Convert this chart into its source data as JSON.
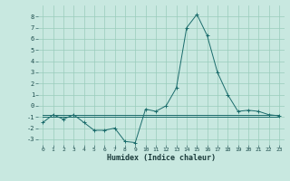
{
  "xlabel": "Humidex (Indice chaleur)",
  "background_color": "#c8e8e0",
  "grid_color": "#99ccbb",
  "line_color": "#1a6b6b",
  "x": [
    0,
    1,
    2,
    3,
    4,
    5,
    6,
    7,
    8,
    9,
    10,
    11,
    12,
    13,
    14,
    15,
    16,
    17,
    18,
    19,
    20,
    21,
    22,
    23
  ],
  "y_main": [
    -1.5,
    -0.8,
    -1.2,
    -0.8,
    -1.5,
    -2.2,
    -2.2,
    -2.0,
    -3.2,
    -3.3,
    -0.3,
    -0.5,
    0.0,
    1.6,
    7.0,
    8.2,
    6.3,
    3.0,
    1.0,
    -0.5,
    -0.4,
    -0.5,
    -0.8,
    -0.9
  ],
  "y_flat1": [
    -0.8,
    -0.8,
    -0.8,
    -0.8,
    -0.8,
    -0.8,
    -0.8,
    -0.8,
    -0.8,
    -0.8,
    -0.8,
    -0.8,
    -0.8,
    -0.8,
    -0.8,
    -0.8,
    -0.8,
    -0.8,
    -0.8,
    -0.8,
    -0.8,
    -0.8,
    -0.8,
    -0.8
  ],
  "y_flat2": [
    -1.0,
    -1.0,
    -1.0,
    -1.0,
    -1.0,
    -1.0,
    -1.0,
    -1.0,
    -1.0,
    -1.0,
    -1.0,
    -1.0,
    -1.0,
    -1.0,
    -1.0,
    -1.0,
    -1.0,
    -1.0,
    -1.0,
    -1.0,
    -1.0,
    -1.0,
    -1.0,
    -1.0
  ],
  "ylim": [
    -3.5,
    9.0
  ],
  "yticks": [
    -3,
    -2,
    -1,
    0,
    1,
    2,
    3,
    4,
    5,
    6,
    7,
    8
  ],
  "xticks": [
    0,
    1,
    2,
    3,
    4,
    5,
    6,
    7,
    8,
    9,
    10,
    11,
    12,
    13,
    14,
    15,
    16,
    17,
    18,
    19,
    20,
    21,
    22,
    23
  ],
  "figsize": [
    3.2,
    2.0
  ],
  "dpi": 100
}
